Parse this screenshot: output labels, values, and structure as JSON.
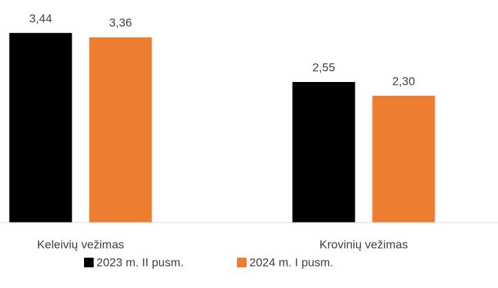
{
  "chart_data": {
    "type": "bar",
    "categories": [
      "Keleivių vežimas",
      "Krovinių vežimas"
    ],
    "series": [
      {
        "name": "2023 m. II pusm.",
        "color": "#000000",
        "values": [
          3.44,
          2.55
        ],
        "value_labels": [
          "3,44",
          "2,55"
        ]
      },
      {
        "name": "2024 m. I pusm.",
        "color": "#ed7d31",
        "values": [
          3.36,
          2.3
        ],
        "value_labels": [
          "3,36",
          "2,30"
        ]
      }
    ]
  }
}
